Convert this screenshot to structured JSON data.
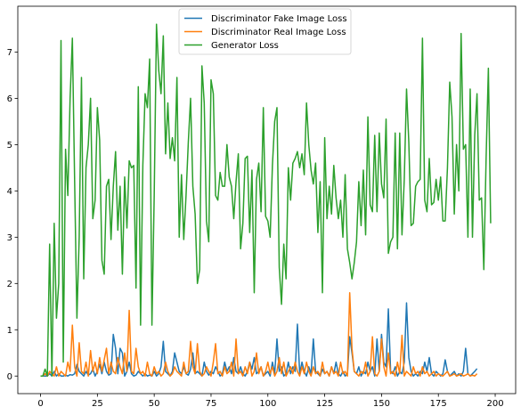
{
  "chart_data": {
    "type": "line",
    "title": "",
    "xlabel": "",
    "ylabel": "",
    "xlim": [
      -10,
      209
    ],
    "ylim": [
      -0.38,
      7.99
    ],
    "x_ticks": [
      0,
      25,
      50,
      75,
      100,
      125,
      150,
      175,
      200
    ],
    "y_ticks": [
      0,
      1,
      2,
      3,
      4,
      5,
      6,
      7
    ],
    "grid": false,
    "legend_position": "top-center",
    "series": [
      {
        "name": "Discriminator Fake Image Loss",
        "color": "#1f77b4",
        "values": [
          0.0,
          0.0,
          0.0,
          0.0,
          0.05,
          0.0,
          0.1,
          0.0,
          0.05,
          0.0,
          0.0,
          0.02,
          0.0,
          0.03,
          0.02,
          0.05,
          0.25,
          0.1,
          0.05,
          0.0,
          0.1,
          0.02,
          0.05,
          0.15,
          0.0,
          0.1,
          0.25,
          0.05,
          0.3,
          0.1,
          0.02,
          0.05,
          0.9,
          0.6,
          0.05,
          0.6,
          0.5,
          0.0,
          0.1,
          0.3,
          0.05,
          0.0,
          0.02,
          0.1,
          0.05,
          0.0,
          0.05,
          0.0,
          0.02,
          0.0,
          0.1,
          0.0,
          0.05,
          0.2,
          0.75,
          0.1,
          0.05,
          0.0,
          0.1,
          0.5,
          0.3,
          0.1,
          0.05,
          0.2,
          0.05,
          0.02,
          0.15,
          0.5,
          0.05,
          0.1,
          0.05,
          0.0,
          0.3,
          0.1,
          0.02,
          0.1,
          0.05,
          0.2,
          0.1,
          0.0,
          0.05,
          0.3,
          0.1,
          0.2,
          0.05,
          0.4,
          0.1,
          0.05,
          0.2,
          0.05,
          0.0,
          0.1,
          0.3,
          0.15,
          0.4,
          0.05,
          0.1,
          0.2,
          0.0,
          0.05,
          0.1,
          0.0,
          0.3,
          0.05,
          0.8,
          0.1,
          0.2,
          0.0,
          0.05,
          0.3,
          0.05,
          0.2,
          0.1,
          1.12,
          0.05,
          0.3,
          0.1,
          0.0,
          0.2,
          0.05,
          0.8,
          0.1,
          0.05,
          0.0,
          0.15,
          0.05,
          0.1,
          0.0,
          0.2,
          0.05,
          0.3,
          0.05,
          0.0,
          0.1,
          0.0,
          0.05,
          0.85,
          0.5,
          0.1,
          0.05,
          0.2,
          0.0,
          0.1,
          0.05,
          0.3,
          0.1,
          0.2,
          0.0,
          0.8,
          0.1,
          0.9,
          0.3,
          0.2,
          1.45,
          0.1,
          0.05,
          0.2,
          0.0,
          0.1,
          0.05,
          0.3,
          1.58,
          0.4,
          0.1,
          0.0,
          0.05,
          0.0,
          0.1,
          0.05,
          0.3,
          0.1,
          0.4,
          0.05,
          0.0,
          0.1,
          0.05,
          0.0,
          0.05,
          0.35,
          0.1,
          0.0,
          0.05,
          0.1,
          0.0,
          0.05,
          0.0,
          0.1,
          0.6,
          0.05,
          0.0,
          0.05,
          0.1,
          0.16
        ]
      },
      {
        "name": "Discriminator Real Image Loss",
        "color": "#ff7f0e",
        "values": [
          0.0,
          0.0,
          0.05,
          0.0,
          0.1,
          0.05,
          0.0,
          0.2,
          0.0,
          0.1,
          0.05,
          0.0,
          0.3,
          0.1,
          1.1,
          0.2,
          0.0,
          0.72,
          0.1,
          0.05,
          0.3,
          0.0,
          0.55,
          0.1,
          0.3,
          0.05,
          0.4,
          0.1,
          0.35,
          0.6,
          0.05,
          0.3,
          0.1,
          0.05,
          0.4,
          0.2,
          0.05,
          0.5,
          0.1,
          1.42,
          0.1,
          0.05,
          0.6,
          0.2,
          0.05,
          0.1,
          0.0,
          0.3,
          0.05,
          0.0,
          0.2,
          0.05,
          0.1,
          0.0,
          0.05,
          0.3,
          0.1,
          0.0,
          0.05,
          0.2,
          0.1,
          0.05,
          0.0,
          0.3,
          0.05,
          0.1,
          0.75,
          0.2,
          0.05,
          0.7,
          0.1,
          0.0,
          0.05,
          0.2,
          0.1,
          0.0,
          0.3,
          0.7,
          0.05,
          0.1,
          0.0,
          0.2,
          0.05,
          0.1,
          0.3,
          0.0,
          0.8,
          0.05,
          0.1,
          0.0,
          0.2,
          0.05,
          0.3,
          0.0,
          0.1,
          0.5,
          0.05,
          0.2,
          0.0,
          0.1,
          0.3,
          0.05,
          0.2,
          0.0,
          0.1,
          0.4,
          0.05,
          0.3,
          0.0,
          0.1,
          0.2,
          0.05,
          0.3,
          0.1,
          0.0,
          0.2,
          0.05,
          0.3,
          0.1,
          0.0,
          0.2,
          0.05,
          0.1,
          0.0,
          0.3,
          0.05,
          0.1,
          0.0,
          0.2,
          0.05,
          0.1,
          0.0,
          0.3,
          0.05,
          0.1,
          0.0,
          1.8,
          0.6,
          0.1,
          0.05,
          0.0,
          0.1,
          0.05,
          0.3,
          0.0,
          0.1,
          0.85,
          0.05,
          0.0,
          0.1,
          0.8,
          0.2,
          0.0,
          0.5,
          0.05,
          0.1,
          0.0,
          0.3,
          0.05,
          0.88,
          0.0,
          0.1,
          0.05,
          0.0,
          0.2,
          0.05,
          0.1,
          0.0,
          0.2,
          0.05,
          0.1,
          0.0,
          0.05,
          0.1,
          0.0,
          0.05,
          0.02,
          0.0,
          0.05,
          0.1,
          0.0,
          0.02,
          0.05,
          0.0,
          0.02,
          0.05,
          0.0,
          0.02,
          0.05,
          0.0,
          0.02,
          0.0,
          0.05
        ]
      },
      {
        "name": "Generator Loss",
        "color": "#2ca02c",
        "values": [
          0.0,
          0.0,
          0.15,
          0.0,
          2.85,
          0.0,
          3.3,
          1.25,
          2.0,
          7.25,
          0.3,
          4.9,
          3.9,
          6.0,
          7.3,
          4.2,
          1.25,
          3.0,
          6.45,
          2.1,
          4.5,
          5.0,
          6.0,
          3.4,
          3.8,
          5.8,
          5.1,
          2.5,
          2.2,
          4.1,
          4.25,
          2.95,
          4.1,
          4.85,
          3.15,
          4.1,
          2.2,
          4.3,
          3.2,
          4.65,
          4.5,
          4.55,
          1.9,
          6.25,
          1.1,
          4.55,
          6.1,
          5.8,
          6.85,
          1.1,
          3.9,
          7.6,
          6.6,
          6.1,
          7.35,
          4.8,
          5.9,
          4.7,
          5.15,
          4.65,
          6.45,
          3.0,
          4.35,
          2.95,
          3.9,
          5.05,
          6.0,
          4.1,
          3.5,
          2.0,
          2.3,
          6.7,
          5.9,
          3.35,
          2.9,
          6.4,
          6.1,
          3.9,
          3.8,
          4.4,
          4.1,
          4.1,
          5.0,
          4.3,
          4.1,
          3.4,
          4.2,
          4.8,
          2.75,
          3.3,
          4.7,
          4.75,
          3.1,
          4.45,
          1.8,
          4.25,
          4.6,
          3.55,
          5.8,
          3.45,
          3.35,
          3.0,
          4.55,
          5.5,
          5.8,
          2.35,
          1.55,
          2.85,
          2.1,
          4.5,
          3.8,
          4.6,
          4.7,
          4.85,
          4.5,
          4.8,
          4.35,
          5.9,
          5.0,
          4.45,
          4.15,
          4.6,
          3.1,
          4.2,
          1.8,
          5.15,
          3.4,
          4.1,
          3.5,
          4.55,
          3.85,
          3.4,
          3.8,
          3.0,
          4.35,
          2.75,
          2.45,
          2.1,
          2.45,
          2.9,
          4.2,
          3.25,
          4.45,
          3.05,
          5.6,
          3.7,
          3.55,
          5.2,
          3.55,
          5.25,
          4.15,
          3.85,
          5.55,
          2.65,
          2.9,
          3.0,
          5.25,
          2.75,
          5.25,
          3.05,
          4.25,
          6.2,
          5.05,
          3.25,
          3.3,
          4.1,
          4.2,
          4.25,
          7.3,
          3.8,
          3.55,
          4.7,
          3.7,
          3.75,
          4.25,
          3.8,
          4.3,
          3.35,
          3.35,
          4.5,
          6.35,
          5.6,
          3.5,
          5.0,
          4.0,
          7.4,
          4.9,
          5.0,
          3.0,
          6.2,
          3.0,
          5.2,
          6.1,
          3.8,
          3.85,
          2.3,
          4.7,
          6.65,
          3.3
        ]
      }
    ]
  }
}
